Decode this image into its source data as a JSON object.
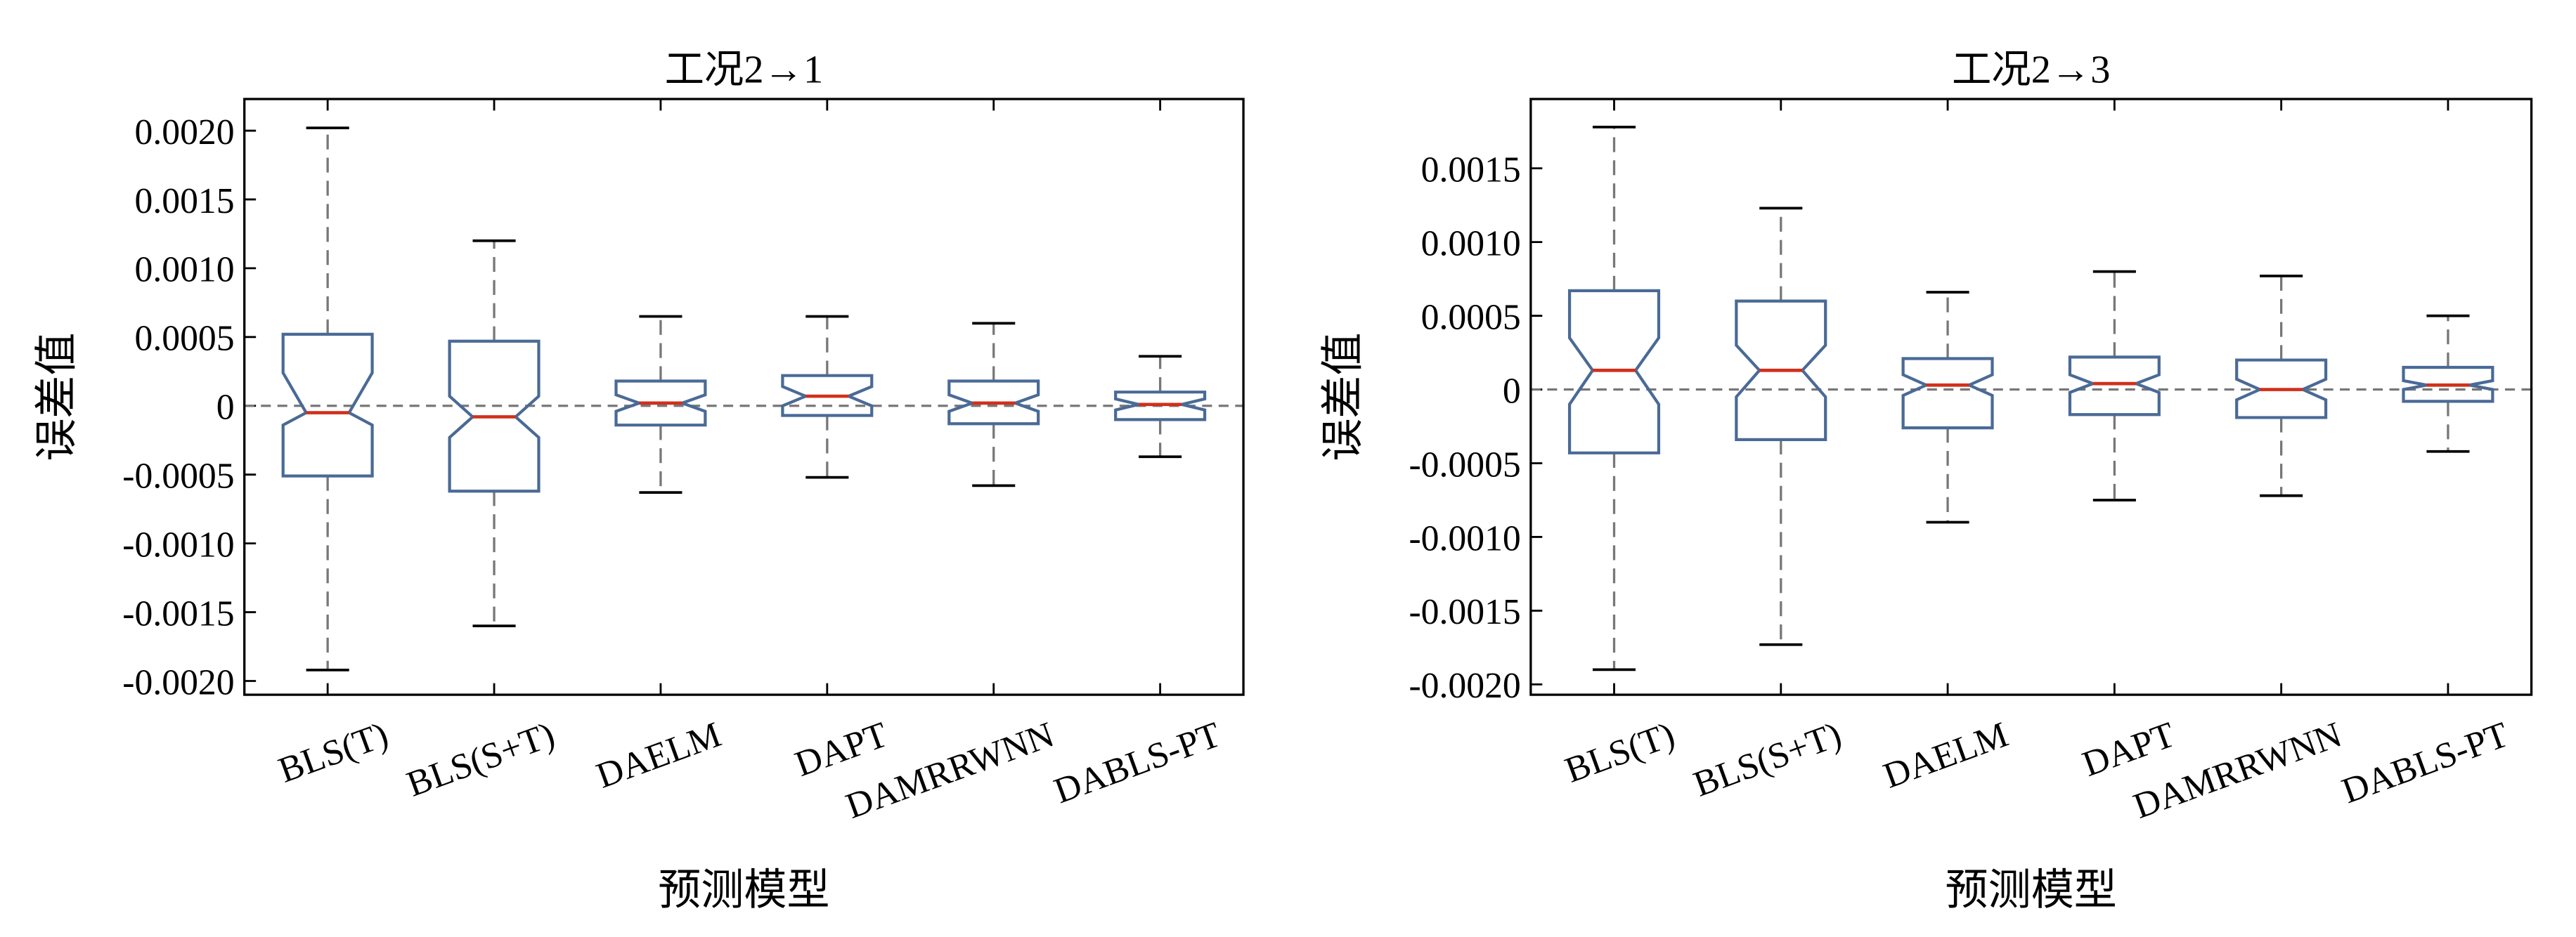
{
  "chart_data": [
    {
      "type": "box",
      "title": "工况2→1",
      "xlabel": "预测模型",
      "ylabel": "误差值",
      "categories": [
        "BLS(T)",
        "BLS(S+T)",
        "DAELM",
        "DAPT",
        "DAMRRWNN",
        "DABLS-PT"
      ],
      "whisker_high": [
        0.00202,
        0.0012,
        0.00065,
        0.00065,
        0.0006,
        0.00036
      ],
      "q3": [
        0.00052,
        0.00047,
        0.00018,
        0.00022,
        0.00018,
        0.0001
      ],
      "notch_high": [
        0.00024,
        7e-05,
        8e-05,
        0.00014,
        8e-05,
        5e-05
      ],
      "median": [
        -5e-05,
        -8e-05,
        2e-05,
        7e-05,
        2e-05,
        1e-05
      ],
      "notch_low": [
        -0.00014,
        -0.00023,
        -4e-05,
        0,
        -4e-05,
        -3e-05
      ],
      "q1": [
        -0.00051,
        -0.00062,
        -0.00014,
        -7e-05,
        -0.00013,
        -0.0001
      ],
      "whisker_low": [
        -0.00192,
        -0.0016,
        -0.00063,
        -0.00052,
        -0.00058,
        -0.00037
      ],
      "reference_line": 0,
      "color": "#4a6a96",
      "median_color": "#d0301c",
      "ylim": [
        -0.0021,
        0.00223
      ],
      "yticks": [
        {
          "value": -0.002,
          "label": "-0.0020"
        },
        -0.0015,
        {
          "value": -0.001,
          "label": "-0.0010"
        },
        -0.0005,
        0,
        0.0005,
        {
          "value": 0.001,
          "label": "0.0010"
        },
        0.0015,
        {
          "value": 0.002,
          "label": "0.0020"
        }
      ]
    },
    {
      "type": "box",
      "title": "工况2→3",
      "xlabel": "预测模型",
      "ylabel": "误差值",
      "categories": [
        "BLS(T)",
        "BLS(S+T)",
        "DAELM",
        "DAPT",
        "DAMRRWNN",
        "DABLS-PT"
      ],
      "whisker_high": [
        0.00178,
        0.00123,
        0.00066,
        0.0008,
        0.00077,
        0.0005
      ],
      "q3": [
        0.00067,
        0.0006,
        0.00021,
        0.00022,
        0.0002,
        0.00015
      ],
      "notch_high": [
        0.00035,
        0.0003,
        0.0001,
        0.0001,
        7e-05,
        6e-05
      ],
      "median": [
        0.00013,
        0.00013,
        3e-05,
        4e-05,
        0,
        3e-05
      ],
      "notch_low": [
        -0.0001,
        -5e-05,
        -4e-05,
        -2e-05,
        -7e-05,
        0
      ],
      "q1": [
        -0.00043,
        -0.00034,
        -0.00026,
        -0.00017,
        -0.00019,
        -8e-05
      ],
      "whisker_low": [
        -0.0019,
        -0.00173,
        -0.0009,
        -0.00075,
        -0.00072,
        -0.00042
      ],
      "reference_line": 0,
      "color": "#4a6a96",
      "median_color": "#d0301c",
      "ylim": [
        -0.00207,
        0.00197
      ],
      "yticks": [
        {
          "value": -0.002,
          "label": "-0.0020"
        },
        -0.0015,
        {
          "value": -0.001,
          "label": "-0.0010"
        },
        -0.0005,
        0,
        0.0005,
        {
          "value": 0.001,
          "label": "0.0010"
        },
        0.0015
      ]
    }
  ]
}
